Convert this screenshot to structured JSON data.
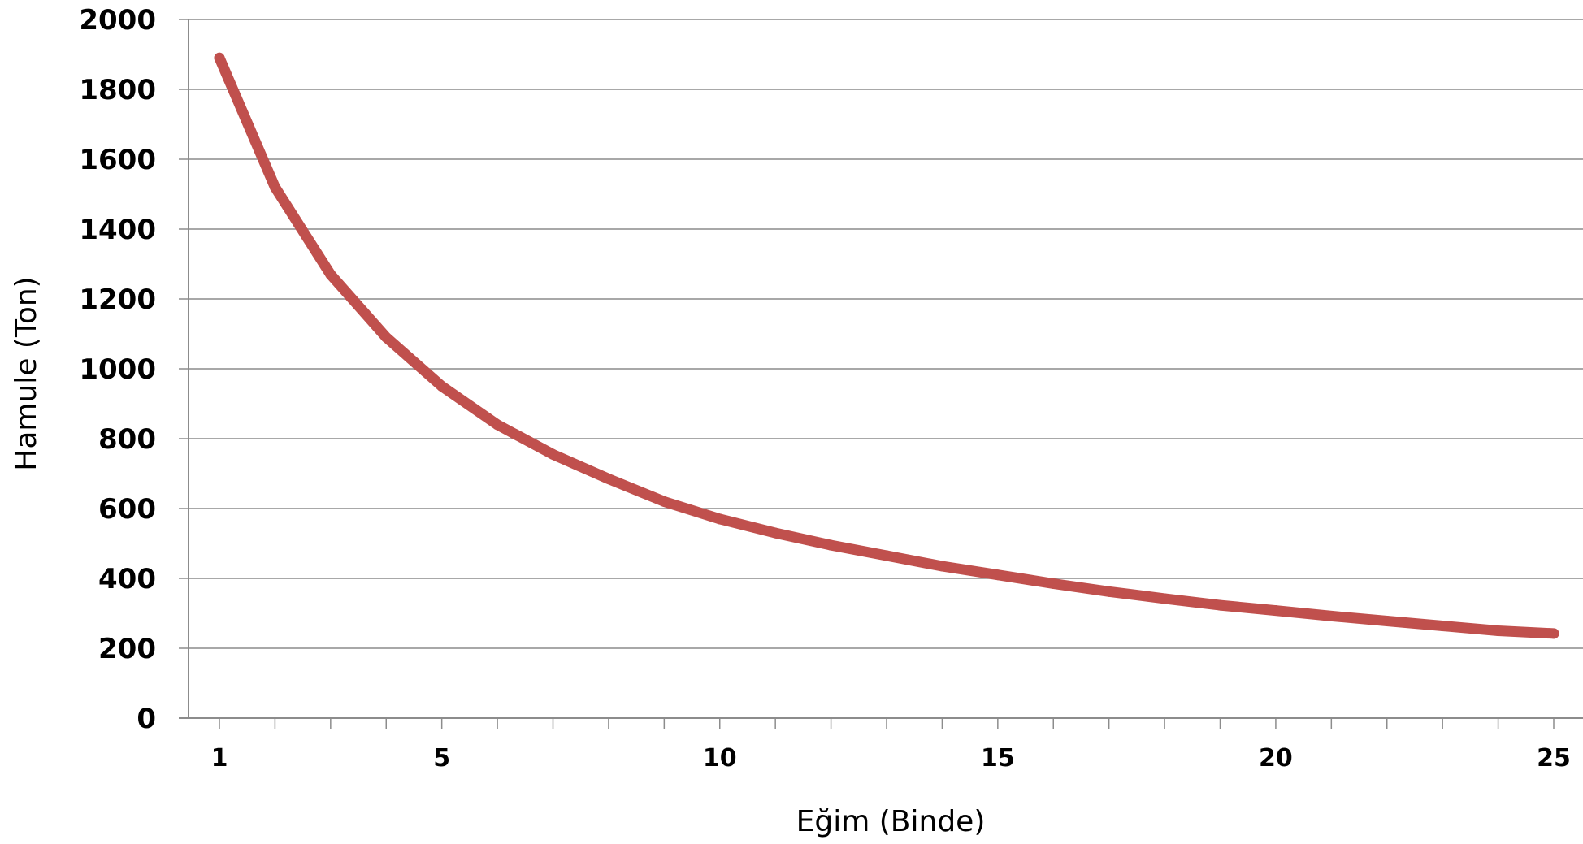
{
  "chart_data": {
    "type": "line",
    "title": "",
    "xlabel": "Eğim (Binde)",
    "ylabel": "Hamule (Ton)",
    "xlim": [
      0.5,
      25.5
    ],
    "ylim": [
      0,
      2000
    ],
    "y_ticks": [
      0,
      200,
      400,
      600,
      800,
      1000,
      1200,
      1400,
      1600,
      1800,
      2000
    ],
    "x_ticks": [
      1,
      5,
      10,
      15,
      20,
      25
    ],
    "x_minor_ticks": [
      1,
      2,
      3,
      4,
      5,
      6,
      7,
      8,
      9,
      10,
      11,
      12,
      13,
      14,
      15,
      16,
      17,
      18,
      19,
      20,
      21,
      22,
      23,
      24,
      25
    ],
    "y_tick_labels": [
      "0",
      "200",
      "400",
      "600",
      "800",
      "1000",
      "1200",
      "1400",
      "1600",
      "1800",
      "2000"
    ],
    "x_tick_labels": [
      "1",
      "5",
      "10",
      "15",
      "20",
      "25"
    ],
    "grid": "horizontal",
    "legend": "none",
    "series": [
      {
        "color": "#c0504d",
        "x": [
          1,
          2,
          3,
          4,
          5,
          6,
          7,
          8,
          9,
          10,
          11,
          12,
          13,
          14,
          15,
          16,
          17,
          18,
          19,
          20,
          21,
          22,
          23,
          24,
          25
        ],
        "values": [
          1890,
          1520,
          1270,
          1090,
          950,
          840,
          755,
          685,
          620,
          570,
          530,
          495,
          465,
          435,
          410,
          385,
          362,
          342,
          323,
          308,
          292,
          278,
          264,
          250,
          242
        ]
      }
    ]
  }
}
